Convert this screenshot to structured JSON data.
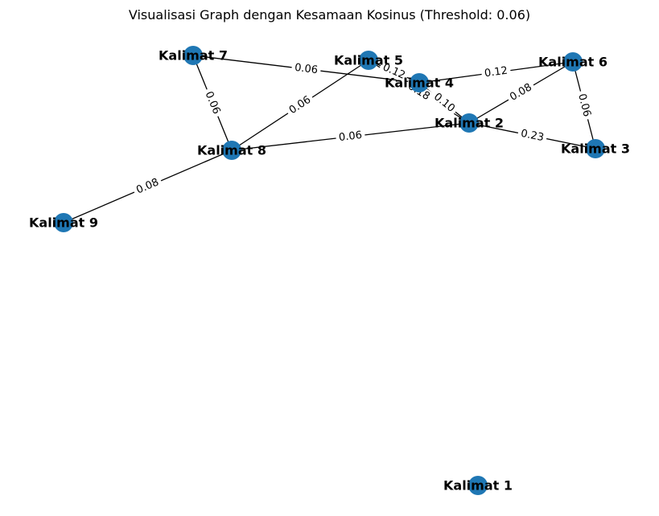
{
  "title": "Visualisasi Graph dengan Kesamaan Kosinus (Threshold: 0.06)",
  "node_color": "#1f77b4",
  "nodes": [
    {
      "id": "k1",
      "label": "Kalimat 1"
    },
    {
      "id": "k2",
      "label": "Kalimat 2"
    },
    {
      "id": "k3",
      "label": "Kalimat 3"
    },
    {
      "id": "k4",
      "label": "Kalimat 4"
    },
    {
      "id": "k5",
      "label": "Kalimat 5"
    },
    {
      "id": "k6",
      "label": "Kalimat 6"
    },
    {
      "id": "k7",
      "label": "Kalimat 7"
    },
    {
      "id": "k8",
      "label": "Kalimat 8"
    },
    {
      "id": "k9",
      "label": "Kalimat 9"
    }
  ],
  "edges": [
    {
      "source": "k7",
      "target": "k4",
      "weight": "0.06"
    },
    {
      "source": "k7",
      "target": "k8",
      "weight": "0.06"
    },
    {
      "source": "k5",
      "target": "k8",
      "weight": "0.06"
    },
    {
      "source": "k5",
      "target": "k4",
      "weight": "0.12"
    },
    {
      "source": "k4",
      "target": "k6",
      "weight": "0.12"
    },
    {
      "source": "k4",
      "target": "k2",
      "weight": "0.10"
    },
    {
      "source": "k2",
      "target": "k6",
      "weight": "0.08"
    },
    {
      "source": "k6",
      "target": "k3",
      "weight": "0.06"
    },
    {
      "source": "k8",
      "target": "k2",
      "weight": "0.06"
    },
    {
      "source": "k8",
      "target": "k9",
      "weight": "0.08"
    },
    {
      "source": "k5",
      "target": "k2",
      "weight": "0.18"
    },
    {
      "source": "k2",
      "target": "k3",
      "weight": "0.23"
    }
  ]
}
